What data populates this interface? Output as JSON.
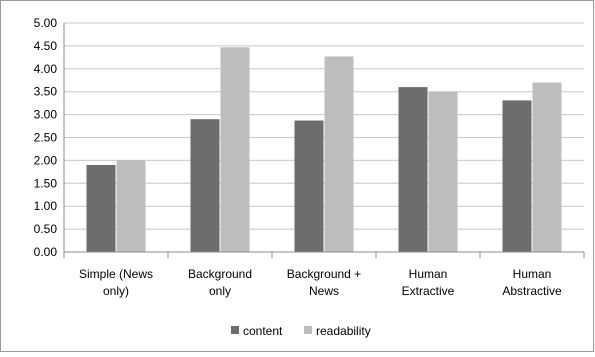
{
  "chart_data": {
    "type": "bar",
    "categories": [
      [
        "Simple (News",
        "only)"
      ],
      [
        "Background",
        "only"
      ],
      [
        "Background +",
        "News"
      ],
      [
        "Human",
        "Extractive"
      ],
      [
        "Human",
        "Abstractive"
      ]
    ],
    "series": [
      {
        "name": "content",
        "values": [
          1.9,
          2.9,
          2.87,
          3.6,
          3.31
        ],
        "color": "#6d6d6d"
      },
      {
        "name": "readability",
        "values": [
          2.0,
          4.47,
          4.27,
          3.5,
          3.7
        ],
        "color": "#bdbdbd"
      }
    ],
    "ylim": [
      0,
      5
    ],
    "yticks": [
      "0.00",
      "0.50",
      "1.00",
      "1.50",
      "2.00",
      "2.50",
      "3.00",
      "3.50",
      "4.00",
      "4.50",
      "5.00"
    ],
    "grid": true,
    "legend_position": "bottom"
  }
}
